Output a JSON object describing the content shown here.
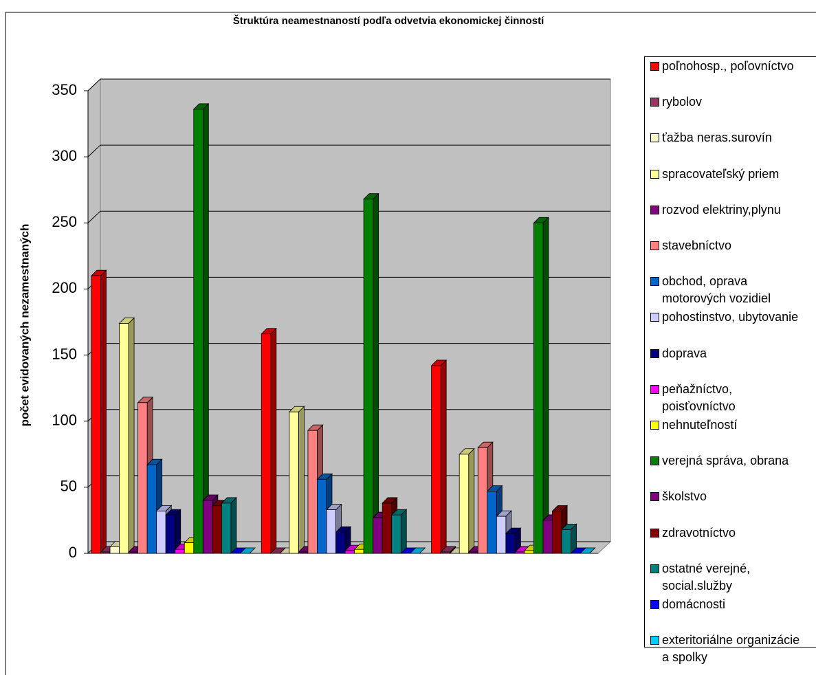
{
  "chart_data": {
    "type": "bar3d",
    "title": "Štruktúra neamestnaností podľa odvetvia ekonomickej činností",
    "y_label": "počet evidovaných nezamestnaných",
    "categories": [
      null,
      null,
      null
    ],
    "ylim": [
      0,
      350
    ],
    "yticks": [
      0,
      50,
      100,
      150,
      200,
      250,
      300,
      350
    ],
    "grid": true,
    "legend": "right",
    "series": [
      {
        "name": "poľnohosp., poľovníctvo",
        "color": "#ff0000",
        "values": [
          210,
          166,
          142
        ]
      },
      {
        "name": "rybolov",
        "color": "#993366",
        "values": [
          1,
          0,
          1
        ]
      },
      {
        "name": "ťažba neras.surovín",
        "color": "#ffffcc",
        "values": [
          5,
          0,
          0
        ]
      },
      {
        "name": "spracovateľský priem",
        "color": "#ffff99",
        "values": [
          174,
          107,
          75
        ]
      },
      {
        "name": "rozvod elektriny,plynu",
        "color": "#800080",
        "values": [
          1,
          1,
          1
        ]
      },
      {
        "name": "stavebníctvo",
        "color": "#ff8080",
        "values": [
          114,
          93,
          80
        ]
      },
      {
        "name": "obchod, oprava motorových vozidiel",
        "color": "#0066cc",
        "values": [
          67,
          56,
          47
        ]
      },
      {
        "name": "pohostinstvo, ubytovanie",
        "color": "#ccccff",
        "values": [
          32,
          33,
          28
        ]
      },
      {
        "name": "doprava",
        "color": "#000080",
        "values": [
          29,
          16,
          15
        ]
      },
      {
        "name": "peňažníctvo, poisťovníctvo",
        "color": "#ff00ff",
        "values": [
          3,
          2,
          1
        ]
      },
      {
        "name": "nehnuteľností",
        "color": "#ffff00",
        "values": [
          8,
          3,
          2
        ]
      },
      {
        "name": "verejná správa, obrana",
        "color": "#008000",
        "values": [
          336,
          268,
          250
        ]
      },
      {
        "name": "školstvo",
        "color": "#800080",
        "values": [
          40,
          27,
          25
        ]
      },
      {
        "name": "zdravotníctvo",
        "color": "#800000",
        "values": [
          36,
          38,
          32
        ]
      },
      {
        "name": "ostatné verejné, social.služby",
        "color": "#008080",
        "values": [
          38,
          29,
          18
        ]
      },
      {
        "name": "domácnosti",
        "color": "#0000ff",
        "values": [
          0,
          0,
          0
        ]
      },
      {
        "name": "exteritoriálne organizácie a spolky",
        "color": "#00ccff",
        "values": [
          0,
          0,
          0
        ]
      }
    ]
  }
}
